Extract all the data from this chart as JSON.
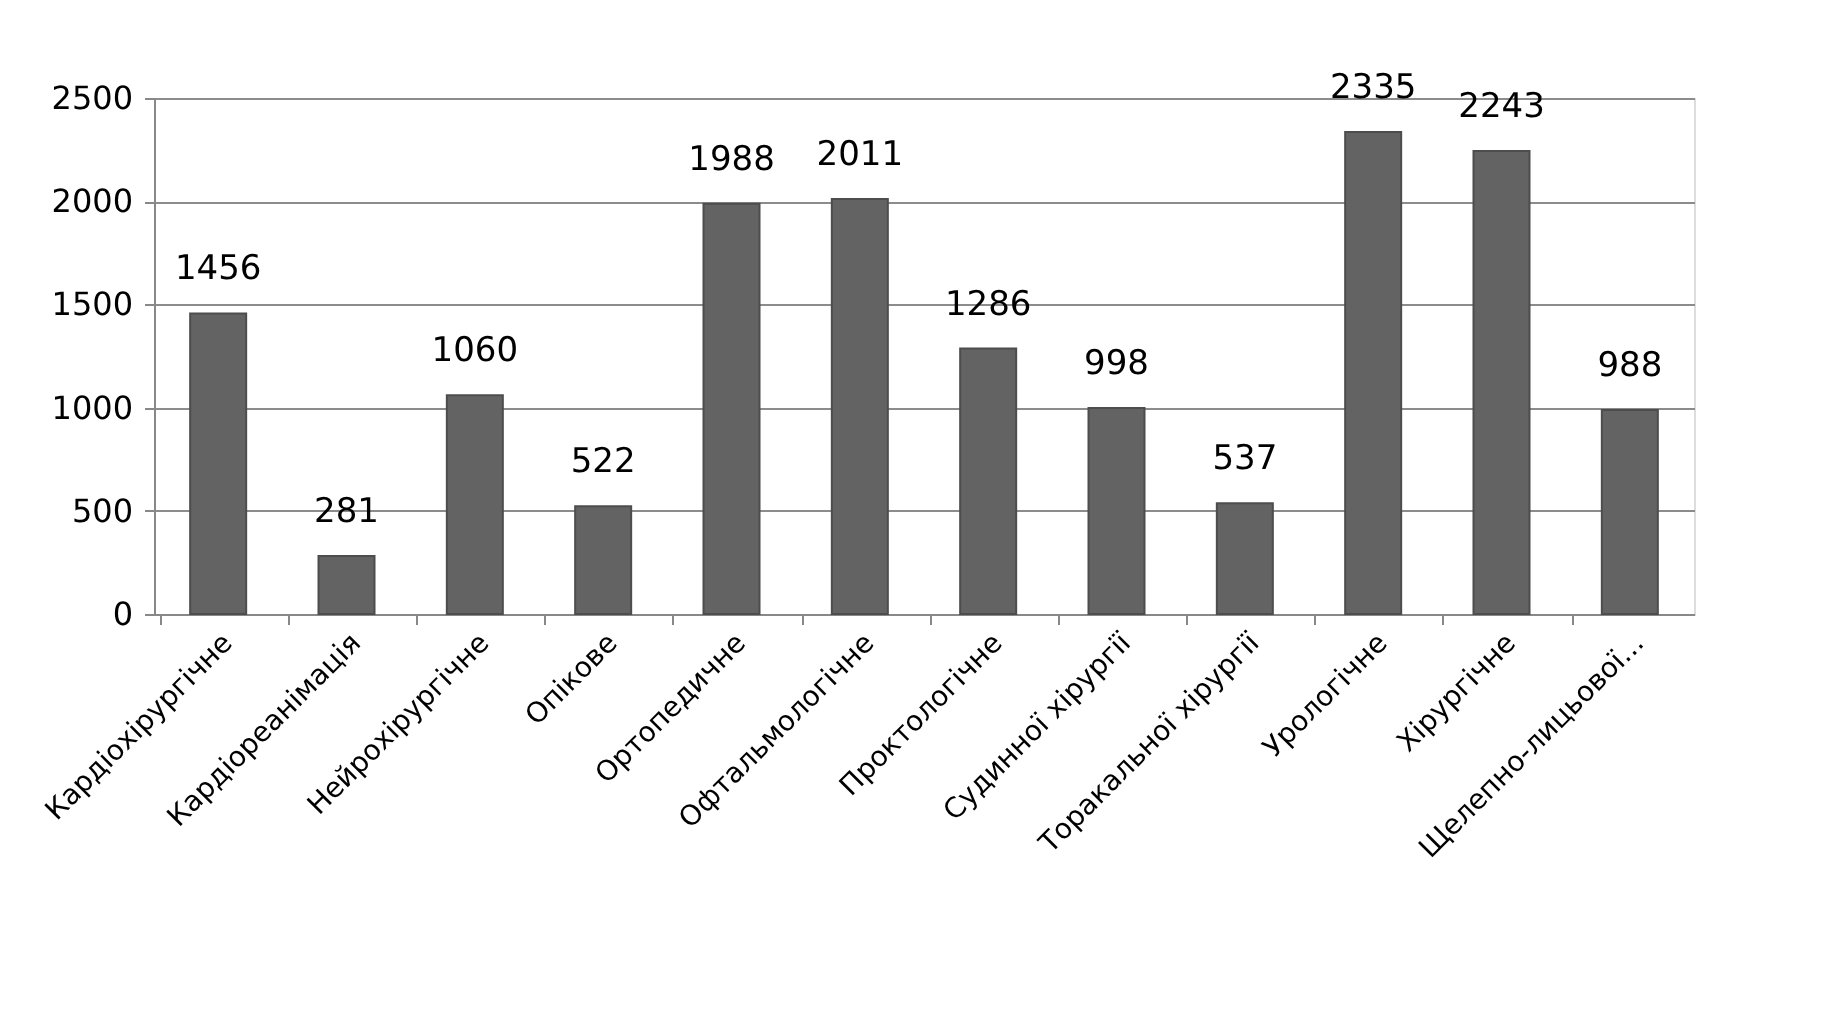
{
  "chart_data": {
    "type": "bar",
    "categories": [
      "Кардіохірургічне",
      "Кардіореанімація",
      "Нейрохірургічне",
      "Опікове",
      "Ортопедичне",
      "Офтальмологічне",
      "Проктологічне",
      "Судинної хірургії",
      "Торакальної хірургії",
      "Урологічне",
      "Хірургічне",
      "Щелепно-лицьової..."
    ],
    "values": [
      1456,
      281,
      1060,
      522,
      1988,
      2011,
      1286,
      998,
      537,
      2335,
      2243,
      988
    ],
    "color": "#636363",
    "ylim": [
      0,
      2500
    ],
    "yticks": [
      0,
      500,
      1000,
      1500,
      2000,
      2500
    ],
    "grid": "y",
    "data_labels": true
  }
}
